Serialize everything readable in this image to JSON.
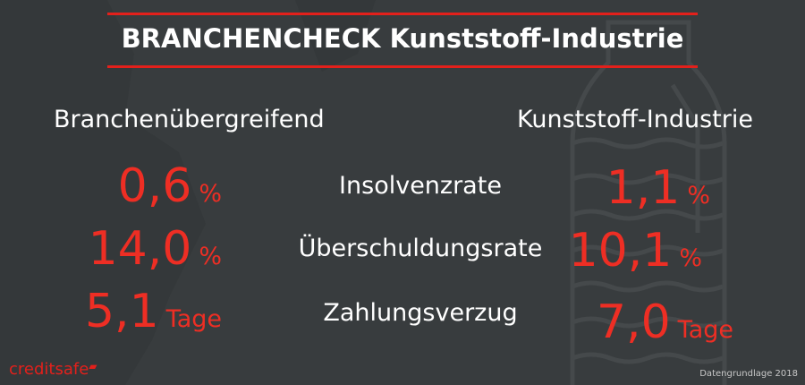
{
  "title": "BRANCHENCHECK Kunststoff-Industrie",
  "columns": {
    "left": "Branchenübergreifend",
    "right": "Kunststoff-Industrie"
  },
  "rows": [
    {
      "label": "Insolvenzrate",
      "left_value": "0,6",
      "left_unit": "%",
      "right_value": "1,1",
      "right_unit": "%"
    },
    {
      "label": "Überschuldungsrate",
      "left_value": "14,0",
      "left_unit": "%",
      "right_value": "10,1",
      "right_unit": "%"
    },
    {
      "label": "Zahlungsverzug",
      "left_value": "5,1",
      "left_unit": "Tage",
      "right_value": "7,0",
      "right_unit": "Tage"
    }
  ],
  "logo": "creditsafe",
  "source": "Datengrundlage 2018",
  "colors": {
    "background": "#383c3e",
    "accent": "#e3201b",
    "value": "#ee2e24"
  }
}
